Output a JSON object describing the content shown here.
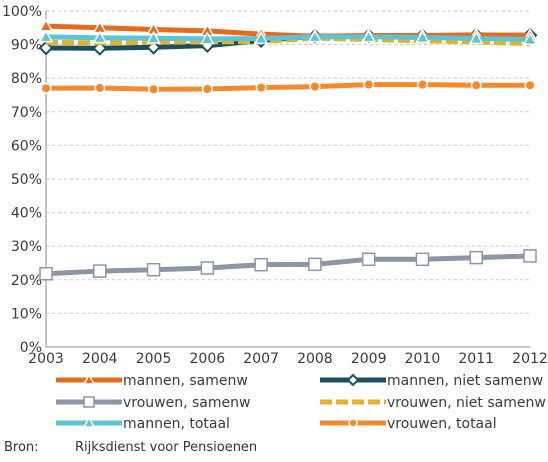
{
  "chart_data": {
    "type": "line",
    "title": "",
    "xlabel": "",
    "ylabel": "",
    "ylim": [
      0,
      100
    ],
    "yticks": [
      0,
      10,
      20,
      30,
      40,
      50,
      60,
      70,
      80,
      90,
      100
    ],
    "ytick_labels": [
      "0%",
      "10%",
      "20%",
      "30%",
      "40%",
      "50%",
      "60%",
      "70%",
      "80%",
      "90%",
      "100%"
    ],
    "x": [
      "2003",
      "2004",
      "2005",
      "2006",
      "2007",
      "2008",
      "2009",
      "2010",
      "2011",
      "2012"
    ],
    "grid": "horizontal",
    "legend_position": "bottom",
    "series": [
      {
        "name": "mannen, samenw",
        "color": "#e36c1f",
        "dash": "solid",
        "marker": "triangle",
        "values": [
          95.5,
          95.0,
          94.5,
          94.1,
          93.1,
          92.5,
          92.7,
          92.7,
          92.9,
          92.7
        ]
      },
      {
        "name": "mannen, niet samenw",
        "color": "#1f4e63",
        "dash": "solid",
        "marker": "diamond",
        "values": [
          89.0,
          88.9,
          89.2,
          89.7,
          91.2,
          92.5,
          92.6,
          92.6,
          92.8,
          92.8
        ]
      },
      {
        "name": "vrouwen, samenw",
        "color": "#8c96a6",
        "dash": "solid",
        "marker": "square",
        "values": [
          21.8,
          22.6,
          23.0,
          23.5,
          24.5,
          24.6,
          26.1,
          26.1,
          26.6,
          27.1
        ]
      },
      {
        "name": "vrouwen, niet samenw",
        "color": "#e5b32b",
        "dash": "dashed",
        "marker": "none",
        "values": [
          90.7,
          90.5,
          90.7,
          90.8,
          90.9,
          91.9,
          91.5,
          91.1,
          90.8,
          90.3
        ]
      },
      {
        "name": "mannen, totaal",
        "color": "#5ec3d2",
        "dash": "solid",
        "marker": "triangle",
        "values": [
          92.3,
          92.0,
          91.9,
          91.7,
          91.8,
          92.3,
          92.3,
          92.1,
          91.8,
          91.5
        ]
      },
      {
        "name": "vrouwen, totaal",
        "color": "#f28a2e",
        "dash": "solid",
        "marker": "circle",
        "values": [
          77.0,
          77.1,
          76.7,
          76.8,
          77.2,
          77.5,
          78.1,
          78.1,
          77.9,
          77.9
        ]
      }
    ]
  },
  "source": {
    "label": "Bron:",
    "text": "Rijksdienst voor Pensioenen"
  }
}
